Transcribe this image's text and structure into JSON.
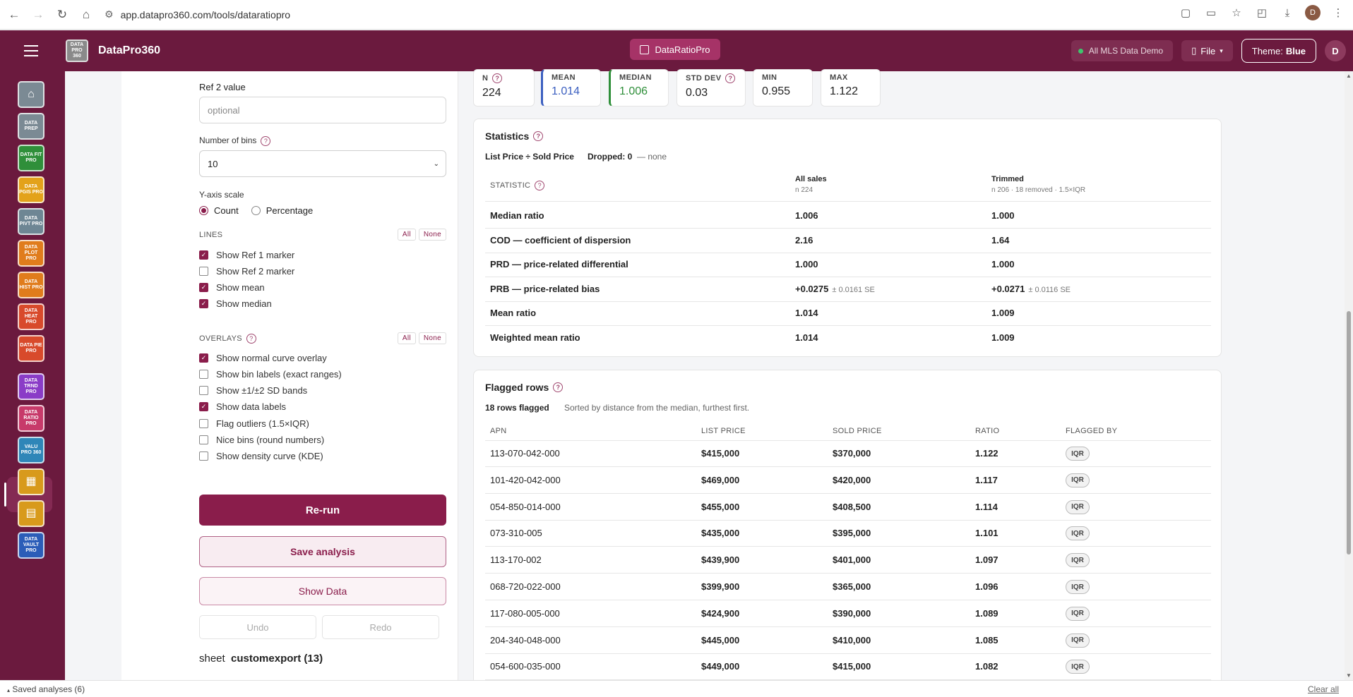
{
  "browser": {
    "url": "app.datapro360.com/tools/dataratiopro"
  },
  "header": {
    "brand": "DataPro360",
    "logo_text": "DATA PRO 360",
    "tool_pill": "DataRatioPro",
    "data_source": "All MLS Data Demo",
    "file_label": "File",
    "theme_label": "Theme:",
    "theme_value": "Blue",
    "avatar_initial": "D",
    "status_color": "#3ec46d"
  },
  "sidebar": {
    "items": [
      {
        "label": "",
        "icon": "home-icon",
        "color": "#7b8a94"
      },
      {
        "label": "DATA PREP",
        "color": "#7b8a94"
      },
      {
        "label": "DATA FIT PRO",
        "color": "#2f8f3a"
      },
      {
        "label": "DATA PGIS PRO",
        "color": "#e3a21a"
      },
      {
        "label": "DATA PIVT PRO",
        "color": "#6e8694"
      },
      {
        "label": "DATA PLOT PRO",
        "color": "#e07c1c"
      },
      {
        "label": "DATA HIST PRO",
        "color": "#e07c1c"
      },
      {
        "label": "DATA HEAT PRO",
        "color": "#d84a2b"
      },
      {
        "label": "DATA PIE PRO",
        "color": "#d84a2b"
      },
      {
        "label": "DATA TRND PRO",
        "color": "#8a3cc7"
      },
      {
        "label": "DATA RATIO PRO",
        "color": "#c73a6a"
      },
      {
        "label": "VALU PRO 360",
        "color": "#2f86b8"
      },
      {
        "label": "",
        "icon": "grid-icon",
        "color": "#d89a1c"
      },
      {
        "label": "",
        "icon": "report-icon",
        "color": "#d89a1c"
      },
      {
        "label": "DATA VAULT PRO",
        "color": "#2b5db8"
      }
    ]
  },
  "controls": {
    "ref2_label": "Ref 2 value",
    "ref2_placeholder": "optional",
    "bins_label": "Number of bins",
    "bins_value": "10",
    "yaxis_label": "Y-axis scale",
    "yaxis_options": [
      "Count",
      "Percentage"
    ],
    "yaxis_selected": "Count",
    "lines_heading": "LINES",
    "overlays_heading": "OVERLAYS",
    "all_label": "All",
    "none_label": "None",
    "lines": [
      {
        "label": "Show Ref 1 marker",
        "checked": true
      },
      {
        "label": "Show Ref 2 marker",
        "checked": false
      },
      {
        "label": "Show mean",
        "checked": true
      },
      {
        "label": "Show median",
        "checked": true
      }
    ],
    "overlays": [
      {
        "label": "Show normal curve overlay",
        "checked": true
      },
      {
        "label": "Show bin labels (exact ranges)",
        "checked": false
      },
      {
        "label": "Show ±1/±2 SD bands",
        "checked": false
      },
      {
        "label": "Show data labels",
        "checked": true
      },
      {
        "label": "Flag outliers (1.5×IQR)",
        "checked": false
      },
      {
        "label": "Nice bins (round numbers)",
        "checked": false
      },
      {
        "label": "Show density curve (KDE)",
        "checked": false
      }
    ],
    "rerun_label": "Re-run",
    "save_label": "Save analysis",
    "show_data_label": "Show Data",
    "undo_label": "Undo",
    "redo_label": "Redo",
    "sheet_prefix": "sheet",
    "sheet_name": "customexport (13)"
  },
  "stats_cards": [
    {
      "title": "N",
      "value": "224",
      "help": true,
      "accent": ""
    },
    {
      "title": "MEAN",
      "value": "1.014",
      "help": false,
      "accent": "#3b5fc0"
    },
    {
      "title": "MEDIAN",
      "value": "1.006",
      "help": false,
      "accent": "#2f8f3a"
    },
    {
      "title": "STD DEV",
      "value": "0.03",
      "help": true,
      "accent": ""
    },
    {
      "title": "MIN",
      "value": "0.955",
      "help": false,
      "accent": ""
    },
    {
      "title": "MAX",
      "value": "1.122",
      "help": false,
      "accent": ""
    }
  ],
  "statistics": {
    "title": "Statistics",
    "formula": "List Price ÷ Sold Price",
    "dropped_label": "Dropped: 0",
    "dropped_note": "— none",
    "col_stat": "STATISTIC",
    "col_all": "All sales",
    "col_all_sub": "n 224",
    "col_trim": "Trimmed",
    "col_trim_sub": "n 206 · 18 removed · 1.5×IQR",
    "rows": [
      {
        "name": "Median ratio",
        "all": "1.006",
        "all_se": "",
        "trim": "1.000",
        "trim_se": ""
      },
      {
        "name": "COD — coefficient of dispersion",
        "all": "2.16",
        "all_se": "",
        "trim": "1.64",
        "trim_se": ""
      },
      {
        "name": "PRD — price-related differential",
        "all": "1.000",
        "all_se": "",
        "trim": "1.000",
        "trim_se": ""
      },
      {
        "name": "PRB — price-related bias",
        "all": "+0.0275",
        "all_se": "± 0.0161 SE",
        "trim": "+0.0271",
        "trim_se": "± 0.0116 SE"
      },
      {
        "name": "Mean ratio",
        "all": "1.014",
        "all_se": "",
        "trim": "1.009",
        "trim_se": ""
      },
      {
        "name": "Weighted mean ratio",
        "all": "1.014",
        "all_se": "",
        "trim": "1.009",
        "trim_se": ""
      }
    ]
  },
  "flagged": {
    "title": "Flagged rows",
    "count_label": "18 rows flagged",
    "sort_note": "Sorted by distance from the median, furthest first.",
    "columns": [
      "APN",
      "LIST PRICE",
      "SOLD PRICE",
      "RATIO",
      "FLAGGED BY"
    ],
    "rows": [
      {
        "apn": "113-070-042-000",
        "list": "$415,000",
        "sold": "$370,000",
        "ratio": "1.122",
        "by": "IQR"
      },
      {
        "apn": "101-420-042-000",
        "list": "$469,000",
        "sold": "$420,000",
        "ratio": "1.117",
        "by": "IQR"
      },
      {
        "apn": "054-850-014-000",
        "list": "$455,000",
        "sold": "$408,500",
        "ratio": "1.114",
        "by": "IQR"
      },
      {
        "apn": "073-310-005",
        "list": "$435,000",
        "sold": "$395,000",
        "ratio": "1.101",
        "by": "IQR"
      },
      {
        "apn": "113-170-002",
        "list": "$439,900",
        "sold": "$401,000",
        "ratio": "1.097",
        "by": "IQR"
      },
      {
        "apn": "068-720-022-000",
        "list": "$399,900",
        "sold": "$365,000",
        "ratio": "1.096",
        "by": "IQR"
      },
      {
        "apn": "117-080-005-000",
        "list": "$424,900",
        "sold": "$390,000",
        "ratio": "1.089",
        "by": "IQR"
      },
      {
        "apn": "204-340-048-000",
        "list": "$445,000",
        "sold": "$410,000",
        "ratio": "1.085",
        "by": "IQR"
      },
      {
        "apn": "054-600-035-000",
        "list": "$449,000",
        "sold": "$415,000",
        "ratio": "1.082",
        "by": "IQR"
      }
    ]
  },
  "footer": {
    "saved_label": "Saved analyses (6)",
    "clear_label": "Clear all"
  }
}
